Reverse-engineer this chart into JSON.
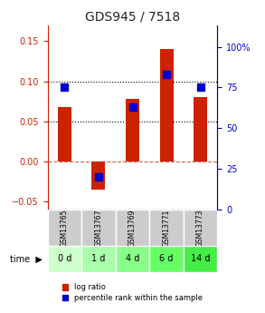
{
  "title": "GDS945 / 7518",
  "samples": [
    "GSM13765",
    "GSM13767",
    "GSM13769",
    "GSM13771",
    "GSM13773"
  ],
  "time_labels": [
    "0 d",
    "1 d",
    "4 d",
    "6 d",
    "14 d"
  ],
  "log_ratios": [
    0.068,
    -0.035,
    0.078,
    0.14,
    0.08
  ],
  "percentile_ranks": [
    75,
    20,
    63,
    83,
    75
  ],
  "left_ylim": [
    -0.06,
    0.17
  ],
  "left_yticks": [
    -0.05,
    0,
    0.05,
    0.1,
    0.15
  ],
  "right_ylim": [
    0,
    113.33
  ],
  "right_yticks": [
    0,
    25,
    50,
    75,
    100
  ],
  "bar_color": "#cc2200",
  "dot_color": "#0000cc",
  "title_color": "#222222",
  "left_axis_color": "#cc2200",
  "right_axis_color": "#0000cc",
  "gsm_bg_color": "#cccccc",
  "time_bg_colors": [
    "#ccffcc",
    "#aaffaa",
    "#88ff88",
    "#66ff66",
    "#44ee44"
  ]
}
